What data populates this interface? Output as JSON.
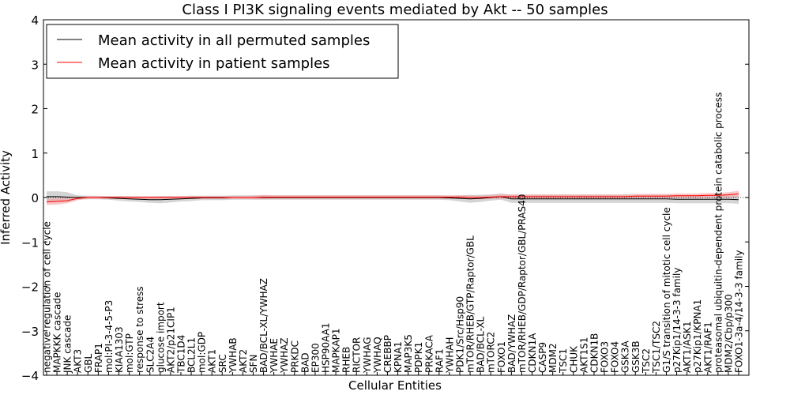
{
  "chart_data": {
    "type": "line",
    "title": "Class I PI3K signaling events mediated by Akt -- 50 samples",
    "xlabel": "Cellular Entities",
    "ylabel": "Inferred Activity",
    "ylim": [
      -4,
      4
    ],
    "yticks": [
      -4,
      -3,
      -2,
      -1,
      0,
      1,
      2,
      3,
      4
    ],
    "ytick_labels": [
      "−4",
      "−3",
      "−2",
      "−1",
      "0",
      "1",
      "2",
      "3",
      "4"
    ],
    "legend": {
      "placement": "top-left",
      "entries": [
        {
          "label": "Mean activity in all permuted samples",
          "color": "#000000"
        },
        {
          "label": "Mean activity in patient samples",
          "color": "#ff0000"
        }
      ]
    },
    "categories": [
      "negative regulation of cell cycle",
      "MAPKKK cascade",
      "JNK cascade",
      "AKT3",
      "GBL",
      "FRAP1",
      "mol:PI-3-4-5-P3",
      "KIAA1303",
      "mol:GTP",
      "response to stress",
      "SLC2A4",
      "glucose import",
      "AKT2/p21CIP1",
      "TBC1D4",
      "BCL2L1",
      "mol:GDP",
      "AKT1",
      "SRC",
      "YWHAB",
      "AKT2",
      "SFN",
      "BAD/BCL-XL/YWHAZ",
      "YWHAE",
      "YWHAZ",
      "PRKDC",
      "BAD",
      "EP300",
      "HSP90AA1",
      "MAPKAP1",
      "RHEB",
      "RICTOR",
      "YWHAG",
      "YWHAQ",
      "CREBBP",
      "KPNA1",
      "MAP3K5",
      "PDPK1",
      "PRKACA",
      "RAF1",
      "YWHAH",
      "PDK1/Src/Hsp90",
      "mTOR/RHEB/GTP/Raptor/GBL",
      "BAD/BCL-XL",
      "mTORC2",
      "FOXO1",
      "BAD/YWHAZ",
      "mTOR/RHEB/GDP/Raptor/GBL/PRAS40",
      "CDKN1A",
      "CASP9",
      "MDM2",
      "TSC1",
      "CHUK",
      "AKT1S1",
      "CDKN1B",
      "FOXO3",
      "FOXO4",
      "GSK3A",
      "GSK3B",
      "TSC2",
      "TSC1/TSC2",
      "G1/S transition of mitotic cell cycle",
      "p27Kip1/14-3-3 family",
      "AKT1/ASK1",
      "p27Kip1/KPNA1",
      "AKT1/RAF1",
      "proteasomal ubiquitin-dependent protein catabolic process",
      "MDM2/Cbp/p300",
      "FOXO1-3a-4/14-3-3 family"
    ],
    "series": [
      {
        "name": "Mean activity in all permuted samples",
        "color": "#000000",
        "band_color": "#b0b0b0",
        "values": [
          0.02,
          0.02,
          0.01,
          0,
          0,
          0,
          -0.01,
          -0.02,
          -0.03,
          -0.04,
          -0.05,
          -0.05,
          -0.04,
          -0.03,
          -0.02,
          -0.01,
          -0.01,
          -0.01,
          0,
          0,
          0,
          0,
          0,
          0,
          0,
          0,
          0,
          0,
          0,
          0,
          0,
          0,
          0,
          0,
          0,
          0,
          0,
          0,
          0,
          -0.01,
          -0.02,
          -0.03,
          -0.02,
          0,
          0.02,
          -0.03,
          -0.03,
          -0.03,
          -0.03,
          -0.03,
          -0.03,
          -0.03,
          -0.03,
          -0.03,
          -0.03,
          -0.03,
          -0.03,
          -0.03,
          -0.03,
          -0.03,
          -0.03,
          -0.04,
          -0.04,
          -0.04,
          -0.04,
          -0.04,
          -0.04,
          -0.05
        ],
        "band_half_width": [
          0.12,
          0.12,
          0.11,
          0.05,
          0.04,
          0.04,
          0.04,
          0.05,
          0.06,
          0.06,
          0.07,
          0.08,
          0.07,
          0.06,
          0.06,
          0.05,
          0.05,
          0.05,
          0.05,
          0.05,
          0.05,
          0.05,
          0.05,
          0.05,
          0.05,
          0.05,
          0.05,
          0.05,
          0.05,
          0.05,
          0.05,
          0.05,
          0.05,
          0.05,
          0.05,
          0.05,
          0.05,
          0.05,
          0.05,
          0.05,
          0.07,
          0.09,
          0.08,
          0.07,
          0.07,
          0.09,
          0.09,
          0.09,
          0.09,
          0.09,
          0.09,
          0.09,
          0.09,
          0.09,
          0.09,
          0.09,
          0.09,
          0.09,
          0.09,
          0.09,
          0.09,
          0.09,
          0.09,
          0.09,
          0.09,
          0.09,
          0.09,
          0.09
        ]
      },
      {
        "name": "Mean activity in patient samples",
        "color": "#ff0000",
        "band_color": "#f5a0a0",
        "values": [
          -0.1,
          -0.09,
          -0.07,
          -0.02,
          0,
          0,
          0,
          0,
          0,
          0,
          0,
          0,
          0,
          0,
          0,
          0,
          0,
          0,
          0,
          0,
          0,
          0.01,
          0.01,
          0.01,
          0.01,
          0.01,
          0.01,
          0.01,
          0.01,
          0.01,
          0.01,
          0.01,
          0.01,
          0.01,
          0.01,
          0.01,
          0.01,
          0.01,
          0.01,
          0.01,
          0.01,
          0,
          0,
          0.01,
          0.02,
          0.02,
          0.02,
          0.02,
          0.02,
          0.02,
          0.02,
          0.02,
          0.02,
          0.02,
          0.02,
          0.02,
          0.02,
          0.03,
          0.03,
          0.03,
          0.03,
          0.04,
          0.04,
          0.04,
          0.05,
          0.05,
          0.06,
          0.08
        ],
        "band_half_width": [
          0.07,
          0.07,
          0.06,
          0.04,
          0.03,
          0.03,
          0.03,
          0.03,
          0.03,
          0.03,
          0.03,
          0.03,
          0.03,
          0.03,
          0.03,
          0.03,
          0.03,
          0.03,
          0.03,
          0.03,
          0.04,
          0.05,
          0.04,
          0.04,
          0.04,
          0.04,
          0.04,
          0.04,
          0.04,
          0.04,
          0.04,
          0.04,
          0.04,
          0.04,
          0.04,
          0.04,
          0.04,
          0.04,
          0.04,
          0.04,
          0.04,
          0.04,
          0.04,
          0.04,
          0.05,
          0.05,
          0.05,
          0.05,
          0.05,
          0.05,
          0.05,
          0.05,
          0.05,
          0.05,
          0.05,
          0.05,
          0.05,
          0.05,
          0.05,
          0.05,
          0.05,
          0.05,
          0.05,
          0.05,
          0.05,
          0.05,
          0.06,
          0.07
        ]
      }
    ]
  }
}
